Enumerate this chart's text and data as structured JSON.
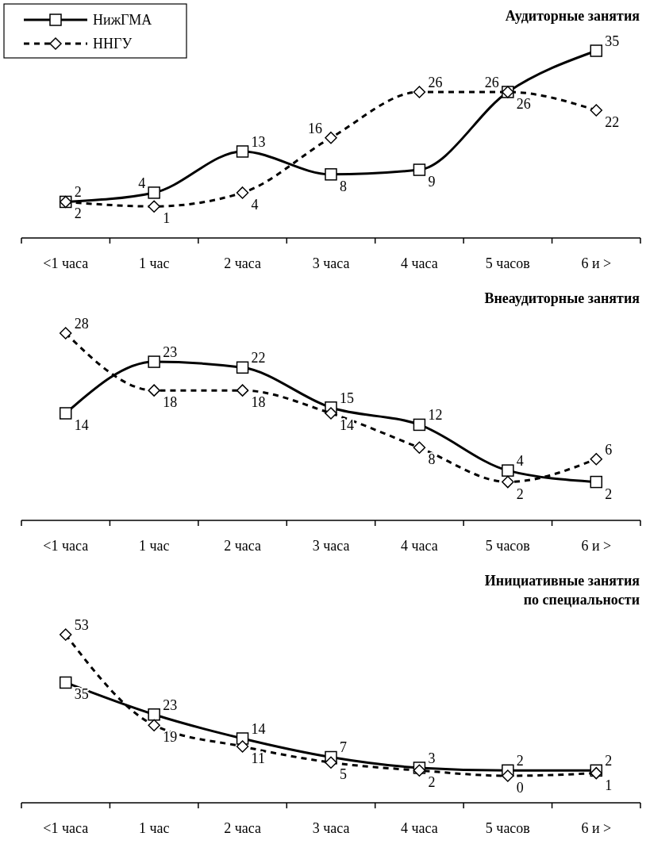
{
  "chart_data": [
    {
      "type": "line",
      "title": "Аудиторные занятия",
      "categories": [
        "<1 часа",
        "1 час",
        "2 часа",
        "3 часа",
        "4 часа",
        "5 часов",
        "6 и >"
      ],
      "legend": "top left",
      "data_labels": true,
      "series": [
        {
          "name": "НижГМА",
          "color": "#000000",
          "marker": "square",
          "line_style": "solid",
          "values": [
            2,
            4,
            13,
            8,
            9,
            26,
            35
          ]
        },
        {
          "name": "ННГУ",
          "color": "#000000",
          "marker": "diamond",
          "line_style": "dashed",
          "values": [
            2,
            1,
            4,
            16,
            26,
            26,
            22
          ]
        }
      ]
    },
    {
      "type": "line",
      "title": "Внеаудиторные занятия",
      "categories": [
        "<1 часа",
        "1 час",
        "2 часа",
        "3 часа",
        "4 часа",
        "5 часов",
        "6 и >"
      ],
      "data_labels": true,
      "series": [
        {
          "color": "#000000",
          "marker": "square",
          "line_style": "solid",
          "values": [
            14,
            23,
            22,
            15,
            12,
            4,
            2
          ]
        },
        {
          "color": "#000000",
          "marker": "diamond",
          "line_style": "dashed",
          "values": [
            28,
            18,
            18,
            14,
            8,
            2,
            6
          ]
        }
      ]
    },
    {
      "type": "line",
      "title": "Инициативные занятия\nпо специальности",
      "categories": [
        "<1 часа",
        "1 час",
        "2 часа",
        "3 часа",
        "4 часа",
        "5 часов",
        "6 и >"
      ],
      "data_labels": true,
      "series": [
        {
          "color": "#000000",
          "marker": "square",
          "line_style": "solid",
          "values": [
            35,
            23,
            14,
            7,
            3,
            2,
            2
          ]
        },
        {
          "color": "#000000",
          "marker": "diamond",
          "line_style": "dashed",
          "values": [
            53,
            19,
            11,
            5,
            2,
            0,
            1
          ]
        }
      ]
    }
  ]
}
